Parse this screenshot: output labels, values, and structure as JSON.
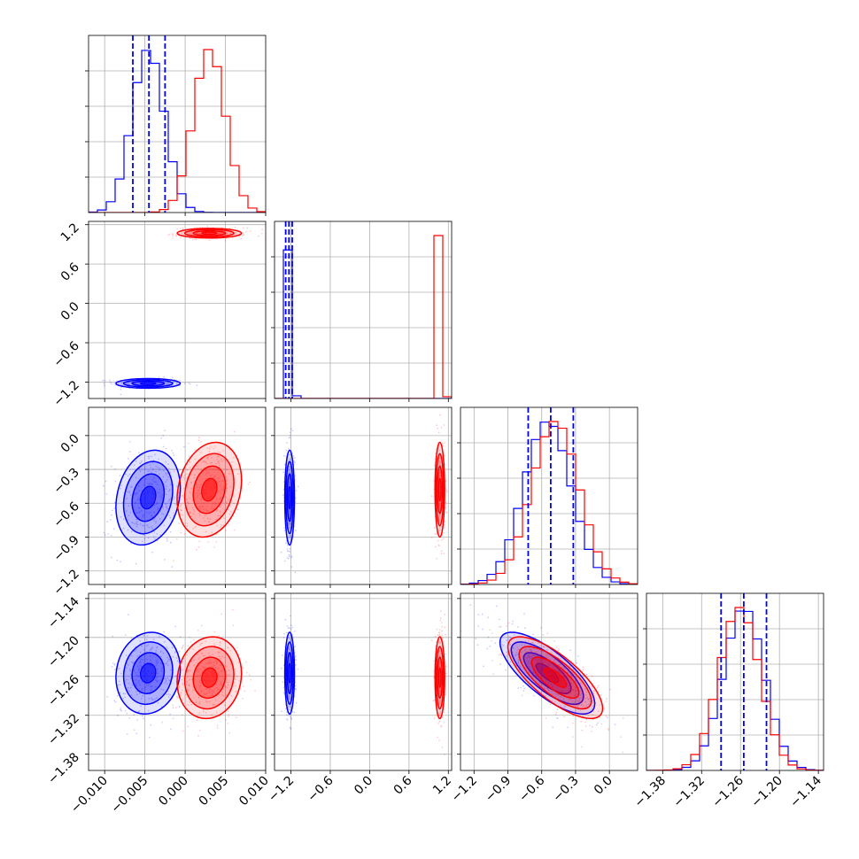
{
  "colors": {
    "series_a": "#0000ff",
    "series_b": "#ff0000",
    "grid": "#b0b0b0",
    "frame": "#000000"
  },
  "chart_data": {
    "type": "corner",
    "grid": true,
    "parameters": [
      {
        "range": [
          -0.012,
          0.01
        ],
        "ticks": [
          -0.01,
          -0.005,
          0.0,
          0.005,
          0.01
        ],
        "tick_labels": [
          "−0.010",
          "−0.005",
          "0.000",
          "0.005",
          "0.010"
        ],
        "quantiles_a": [
          -0.0065,
          -0.0045,
          -0.0025
        ]
      },
      {
        "range": [
          -1.45,
          1.25
        ],
        "ticks": [
          -1.2,
          -0.6,
          0.0,
          0.6,
          1.2
        ],
        "tick_labels": [
          "−1.2",
          "−0.6",
          "0.0",
          "0.6",
          "1.2"
        ],
        "quantiles_a": [
          -1.28,
          -1.23,
          -1.18
        ]
      },
      {
        "range": [
          -1.32,
          0.25
        ],
        "ticks": [
          -1.2,
          -0.9,
          -0.6,
          -0.3,
          0.0
        ],
        "tick_labels": [
          "−1.2",
          "−0.9",
          "−0.6",
          "−0.3",
          "0.0"
        ],
        "quantiles_a": [
          -0.72,
          -0.52,
          -0.32
        ]
      },
      {
        "range": [
          -1.405,
          -1.132
        ],
        "ticks": [
          -1.38,
          -1.32,
          -1.26,
          -1.2,
          -1.14
        ],
        "tick_labels": [
          "−1.38",
          "−1.32",
          "−1.26",
          "−1.20",
          "−1.14"
        ],
        "quantiles_a": [
          -1.29,
          -1.255,
          -1.22
        ]
      }
    ],
    "series": [
      {
        "mean": [
          -0.0046,
          -1.22,
          -0.55,
          -1.255
        ],
        "sd": [
          0.0019,
          0.035,
          0.2,
          0.03
        ],
        "corr_23": -0.75,
        "corr_03": 0.1,
        "corr_02": 0.2
      },
      {
        "mean": [
          0.003,
          1.07,
          -0.48,
          -1.262
        ],
        "sd": [
          0.0019,
          0.035,
          0.2,
          0.03
        ],
        "corr_23": -0.75,
        "corr_03": 0.1,
        "corr_02": 0.2
      }
    ]
  }
}
